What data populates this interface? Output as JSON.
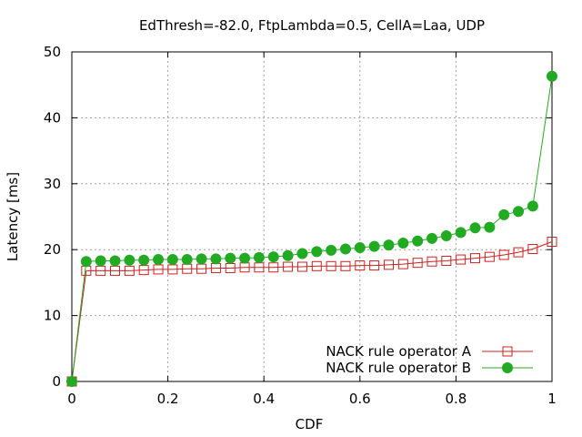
{
  "chart_data": {
    "type": "line",
    "title": "EdThresh=-82.0, FtpLambda=0.5, CellA=Laa, UDP",
    "xlabel": "CDF",
    "ylabel": "Latency [ms]",
    "xlim": [
      0,
      1
    ],
    "ylim": [
      0,
      50
    ],
    "xticks": [
      "0",
      "0.2",
      "0.4",
      "0.6",
      "0.8",
      "1"
    ],
    "yticks": [
      "0",
      "10",
      "20",
      "30",
      "40",
      "50"
    ],
    "grid": true,
    "legend_position": "bottom-right",
    "series": [
      {
        "name": "NACK rule operator A",
        "color": "#cc2222",
        "marker": "open-square",
        "x": [
          0,
          0.03,
          0.06,
          0.09,
          0.12,
          0.15,
          0.18,
          0.21,
          0.24,
          0.27,
          0.3,
          0.33,
          0.36,
          0.39,
          0.42,
          0.45,
          0.48,
          0.51,
          0.54,
          0.57,
          0.6,
          0.63,
          0.66,
          0.69,
          0.72,
          0.75,
          0.78,
          0.81,
          0.84,
          0.87,
          0.9,
          0.93,
          0.96,
          1.0
        ],
        "y": [
          0,
          16.8,
          16.8,
          16.8,
          16.8,
          16.9,
          17.0,
          17.0,
          17.1,
          17.1,
          17.2,
          17.2,
          17.3,
          17.3,
          17.3,
          17.4,
          17.4,
          17.5,
          17.5,
          17.5,
          17.6,
          17.6,
          17.7,
          17.8,
          18.0,
          18.2,
          18.3,
          18.5,
          18.7,
          18.9,
          19.2,
          19.6,
          20.1,
          21.2
        ]
      },
      {
        "name": "NACK rule operator B",
        "color": "#22aa22",
        "marker": "filled-circle",
        "x": [
          0,
          0.03,
          0.06,
          0.09,
          0.12,
          0.15,
          0.18,
          0.21,
          0.24,
          0.27,
          0.3,
          0.33,
          0.36,
          0.39,
          0.42,
          0.45,
          0.48,
          0.51,
          0.54,
          0.57,
          0.6,
          0.63,
          0.66,
          0.69,
          0.72,
          0.75,
          0.78,
          0.81,
          0.84,
          0.87,
          0.9,
          0.93,
          0.96,
          1.0
        ],
        "y": [
          0,
          18.2,
          18.3,
          18.3,
          18.4,
          18.4,
          18.5,
          18.5,
          18.5,
          18.6,
          18.6,
          18.7,
          18.7,
          18.8,
          18.9,
          19.1,
          19.4,
          19.7,
          19.9,
          20.1,
          20.3,
          20.5,
          20.7,
          21.0,
          21.3,
          21.7,
          22.1,
          22.6,
          23.3,
          23.4,
          25.3,
          25.8,
          26.6,
          46.3
        ]
      }
    ]
  }
}
